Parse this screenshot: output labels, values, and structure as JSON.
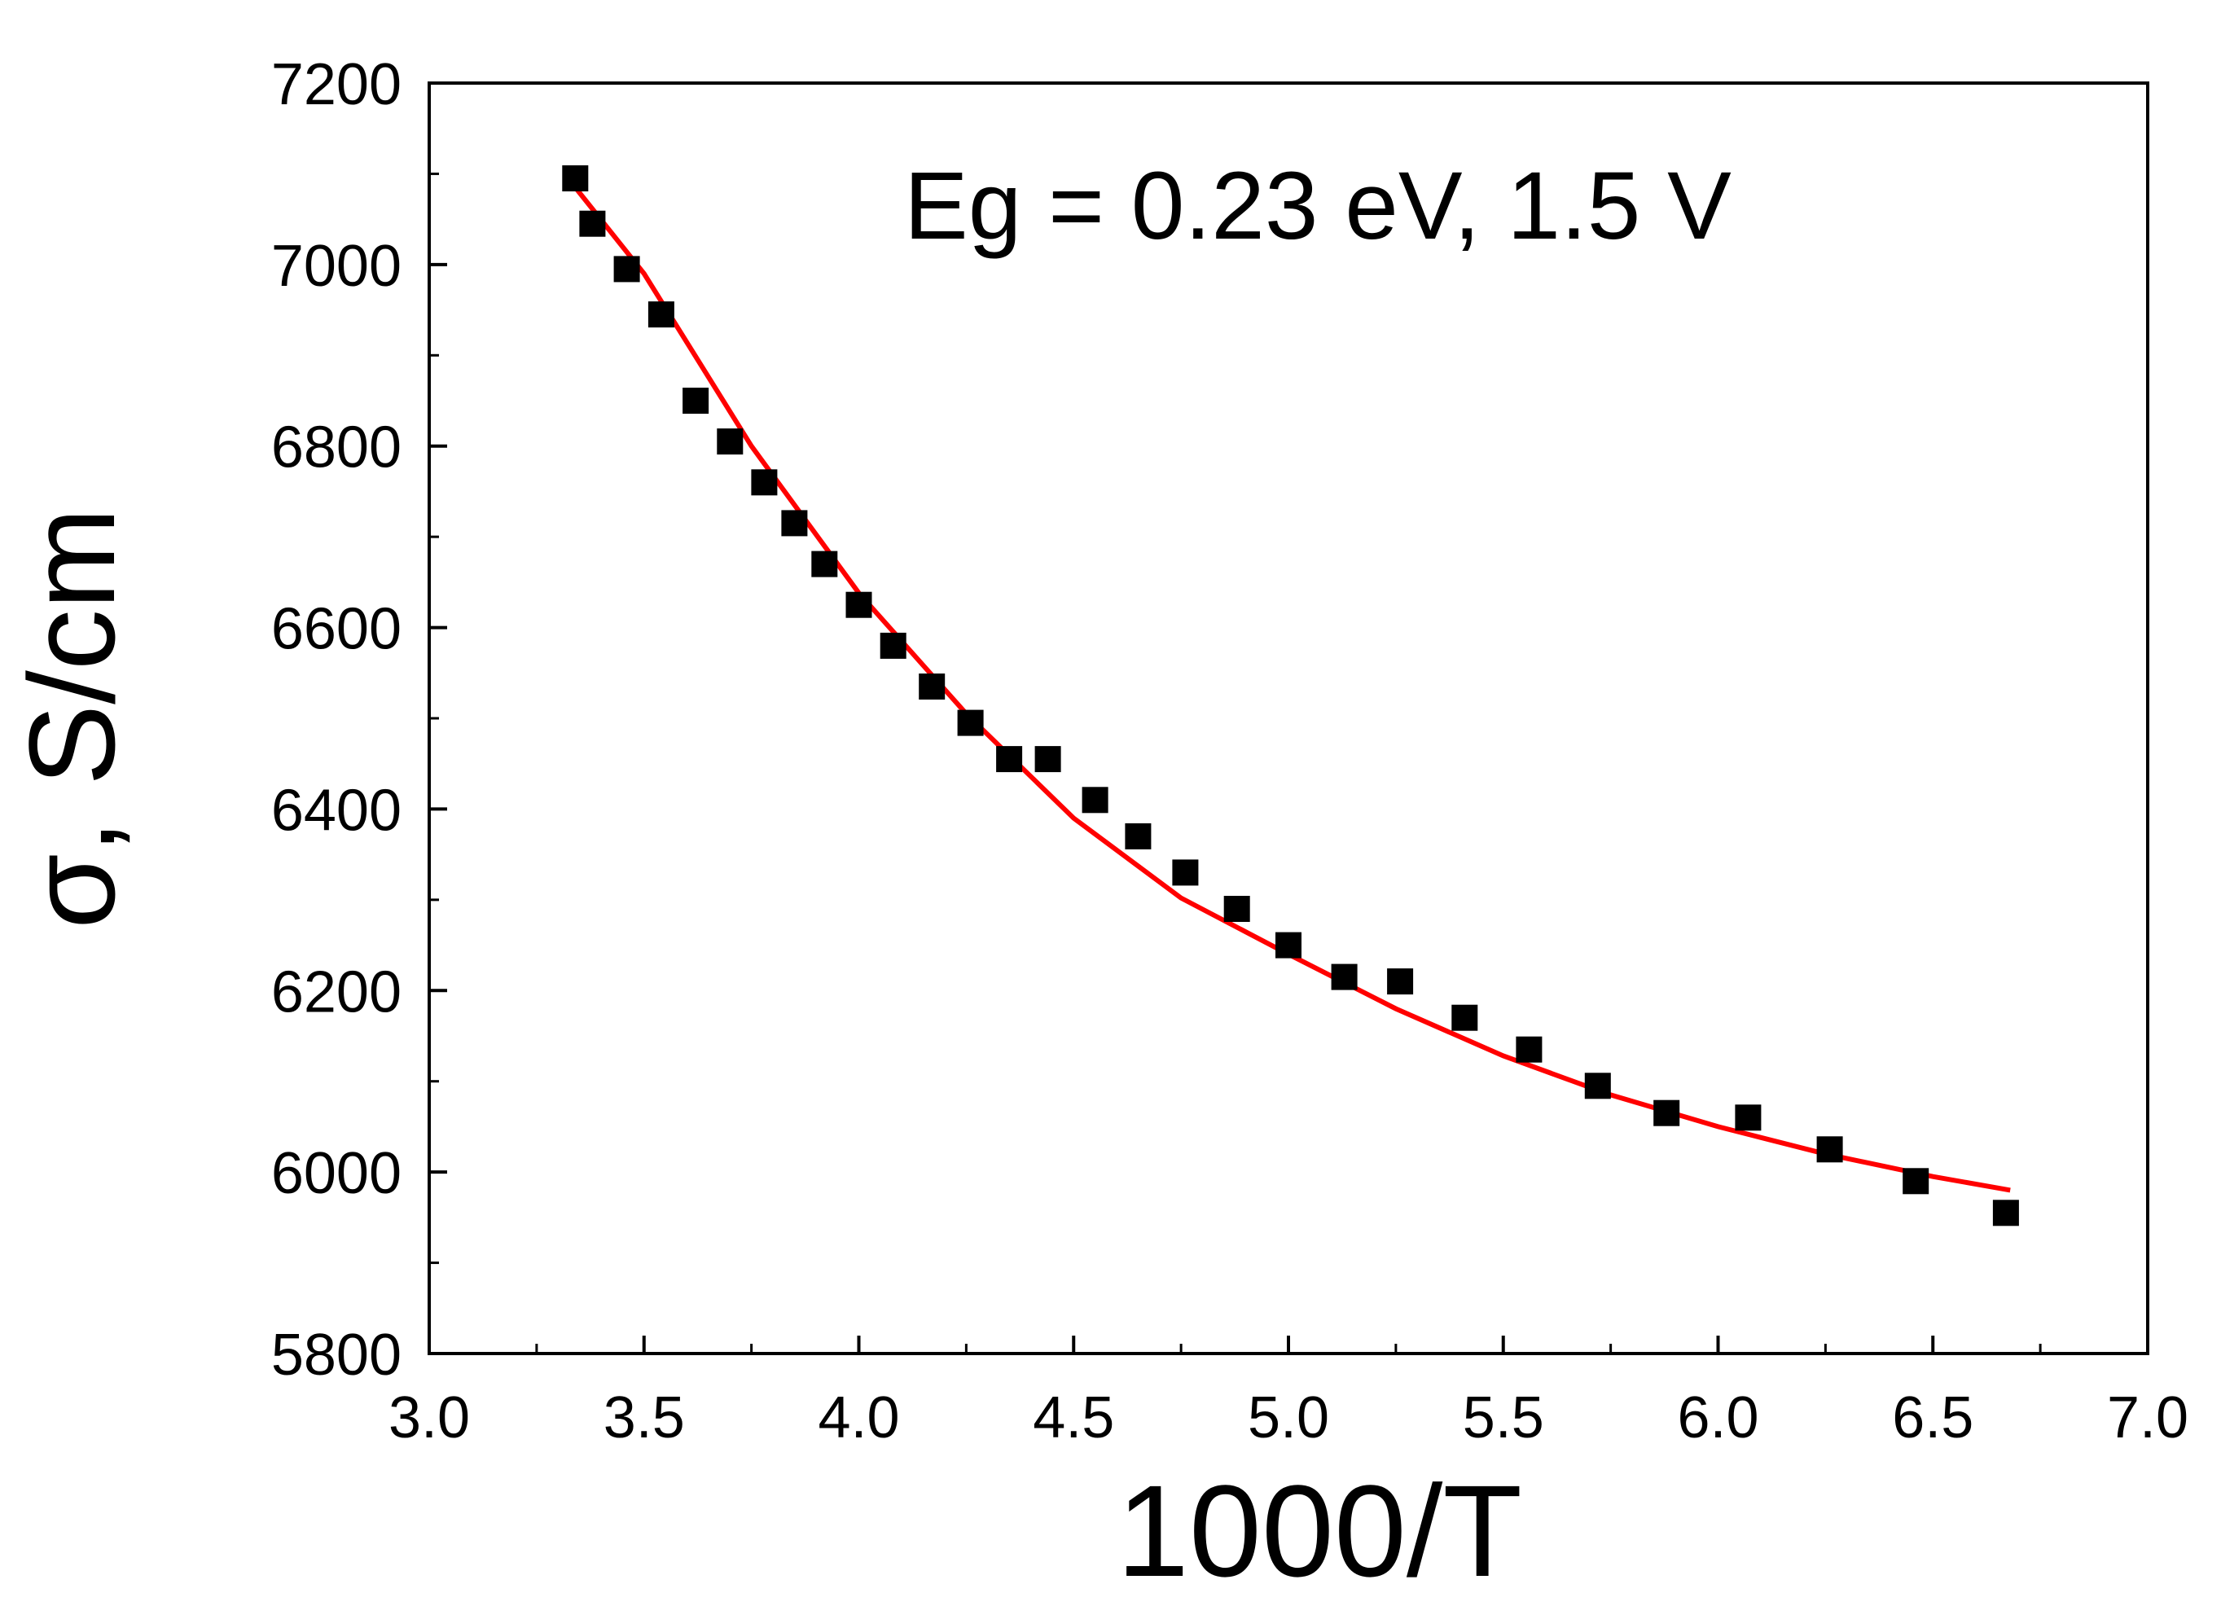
{
  "chart_data": {
    "type": "scatter",
    "xlabel": "1000/T",
    "ylabel": "σ, S/cm",
    "xlim": [
      3.0,
      7.0
    ],
    "ylim": [
      5800,
      7200
    ],
    "x_ticks": [
      "3.0",
      "3.5",
      "4.0",
      "4.5",
      "5.0",
      "5.5",
      "6.0",
      "6.5",
      "7.0"
    ],
    "y_ticks": [
      "5800",
      "6000",
      "6200",
      "6400",
      "6600",
      "6800",
      "7000",
      "7200"
    ],
    "annotation": "Eg = 0.23 eV,  1.5 V",
    "grid": false,
    "colors": {
      "points": "#000000",
      "fit": "#ff0000",
      "frame": "#000000"
    },
    "series": [
      {
        "marker": "square",
        "x": [
          3.34,
          3.38,
          3.46,
          3.54,
          3.62,
          3.7,
          3.78,
          3.85,
          3.92,
          4.0,
          4.08,
          4.17,
          4.26,
          4.35,
          4.44,
          4.55,
          4.65,
          4.76,
          4.88,
          5.0,
          5.13,
          5.26,
          5.41,
          5.56,
          5.72,
          5.88,
          6.07,
          6.26,
          6.46,
          6.67
        ],
        "y": [
          7095,
          7045,
          6995,
          6945,
          6850,
          6805,
          6760,
          6715,
          6670,
          6625,
          6580,
          6535,
          6495,
          6455,
          6455,
          6410,
          6370,
          6330,
          6290,
          6250,
          6215,
          6210,
          6170,
          6135,
          6095,
          6065,
          6060,
          6025,
          5990,
          5955
        ]
      },
      {
        "kind": "fit-line",
        "x": [
          3.34,
          3.5,
          3.75,
          4.0,
          4.25,
          4.5,
          4.75,
          5.0,
          5.25,
          5.5,
          5.75,
          6.0,
          6.25,
          6.5,
          6.68
        ],
        "y": [
          7085,
          6990,
          6800,
          6638,
          6505,
          6390,
          6302,
          6240,
          6180,
          6128,
          6085,
          6050,
          6020,
          5995,
          5980
        ]
      }
    ]
  }
}
